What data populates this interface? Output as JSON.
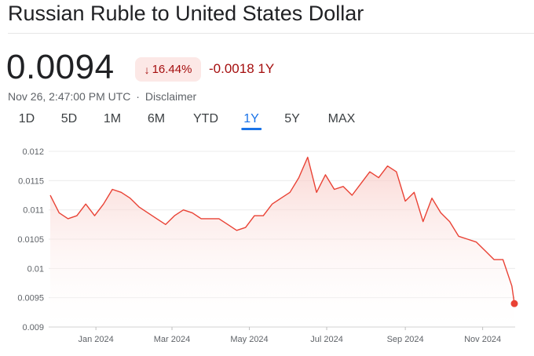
{
  "header": {
    "title": "Russian Ruble to United States Dollar",
    "price": "0.0094",
    "change_percent": "16.44%",
    "change_arrow": "↓",
    "change_abs": "-0.0018 1Y",
    "timestamp": "Nov 26, 2:47:00 PM UTC",
    "separator": "·",
    "disclaimer": "Disclaimer"
  },
  "tabs": [
    {
      "label": "1D"
    },
    {
      "label": "5D"
    },
    {
      "label": "1M"
    },
    {
      "label": "6M"
    },
    {
      "label": "YTD"
    },
    {
      "label": "1Y",
      "active": true
    },
    {
      "label": "5Y"
    },
    {
      "label": "MAX"
    }
  ],
  "colors": {
    "line": "#e94235",
    "fill_top": "#f8c9c4",
    "negative_text": "#a50e0e",
    "badge_bg": "#fce8e6",
    "active_tab": "#1a73e8"
  },
  "chart_data": {
    "type": "area",
    "ylim": [
      0.009,
      0.012
    ],
    "y_ticks": [
      "0.009",
      "0.0095",
      "0.01",
      "0.0105",
      "0.011",
      "0.0115",
      "0.012"
    ],
    "x_ticks": [
      "Jan 2024",
      "Mar 2024",
      "May 2024",
      "Jul 2024",
      "Sep 2024",
      "Nov 2024"
    ],
    "x": [
      "2023-11-26",
      "2023-12-03",
      "2023-12-10",
      "2023-12-17",
      "2023-12-24",
      "2023-12-31",
      "2024-01-07",
      "2024-01-14",
      "2024-01-21",
      "2024-01-28",
      "2024-02-04",
      "2024-02-11",
      "2024-02-18",
      "2024-02-25",
      "2024-03-03",
      "2024-03-10",
      "2024-03-17",
      "2024-03-24",
      "2024-03-31",
      "2024-04-07",
      "2024-04-14",
      "2024-04-21",
      "2024-04-28",
      "2024-05-05",
      "2024-05-12",
      "2024-05-19",
      "2024-05-26",
      "2024-06-02",
      "2024-06-09",
      "2024-06-16",
      "2024-06-23",
      "2024-06-30",
      "2024-07-07",
      "2024-07-14",
      "2024-07-21",
      "2024-07-28",
      "2024-08-04",
      "2024-08-11",
      "2024-08-18",
      "2024-08-25",
      "2024-09-01",
      "2024-09-08",
      "2024-09-15",
      "2024-09-22",
      "2024-09-29",
      "2024-10-06",
      "2024-10-13",
      "2024-10-20",
      "2024-10-27",
      "2024-11-03",
      "2024-11-10",
      "2024-11-17",
      "2024-11-24",
      "2024-11-26"
    ],
    "series": [
      {
        "values": [
          0.01125,
          0.01095,
          0.01085,
          0.0109,
          0.0111,
          0.0109,
          0.0111,
          0.01135,
          0.0113,
          0.0112,
          0.01105,
          0.01095,
          0.01085,
          0.01075,
          0.0109,
          0.011,
          0.01095,
          0.01085,
          0.01085,
          0.01085,
          0.01075,
          0.01065,
          0.0107,
          0.0109,
          0.0109,
          0.0111,
          0.0112,
          0.0113,
          0.01155,
          0.0119,
          0.0113,
          0.0116,
          0.01135,
          0.0114,
          0.01125,
          0.01145,
          0.01165,
          0.01155,
          0.01175,
          0.01165,
          0.01115,
          0.0113,
          0.0108,
          0.0112,
          0.01095,
          0.0108,
          0.01055,
          0.0105,
          0.01045,
          0.0103,
          0.01015,
          0.01015,
          0.0097,
          0.0094
        ]
      }
    ]
  }
}
